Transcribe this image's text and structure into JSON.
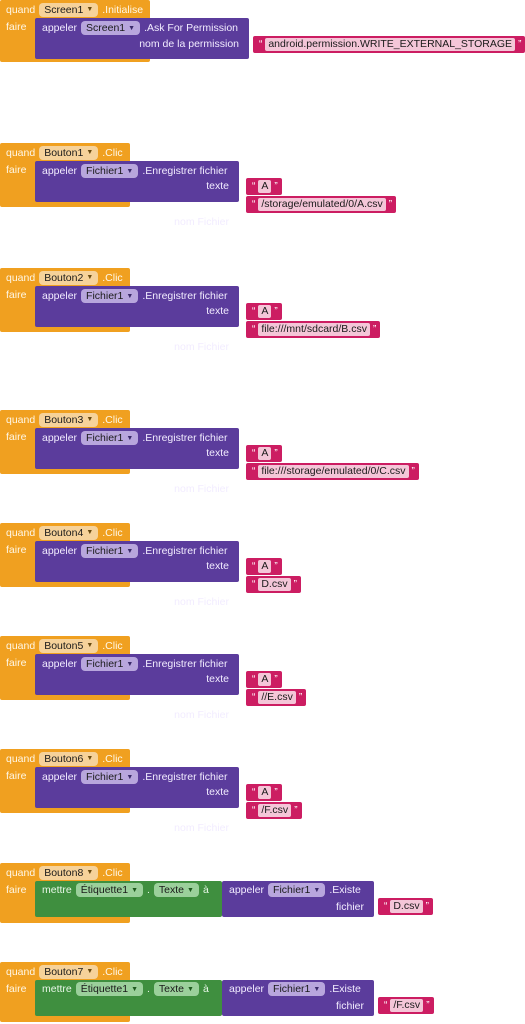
{
  "event_label": "quand",
  "do_label": "faire",
  "call_label": "appeler",
  "set_label": "mettre",
  "to_label": "à",
  "blocks": [
    {
      "component": "Screen1",
      "event": ".Initialise",
      "call_component": "Screen1",
      "method": ".Ask For Permission",
      "arg_label": "nom de la permission",
      "arg_value": "android.permission.WRITE_EXTERNAL_STORAGE"
    },
    {
      "component": "Bouton1",
      "event": ".Clic",
      "call_component": "Fichier1",
      "method": ".Enregistrer fichier",
      "arg1_label": "texte",
      "arg1_value": "A",
      "arg2_label": "nom Fichier",
      "arg2_value": "/storage/emulated/0/A.csv"
    },
    {
      "component": "Bouton2",
      "event": ".Clic",
      "call_component": "Fichier1",
      "method": ".Enregistrer fichier",
      "arg1_label": "texte",
      "arg1_value": "A",
      "arg2_label": "nom Fichier",
      "arg2_value": "file:///mnt/sdcard/B.csv"
    },
    {
      "component": "Bouton3",
      "event": ".Clic",
      "call_component": "Fichier1",
      "method": ".Enregistrer fichier",
      "arg1_label": "texte",
      "arg1_value": "A",
      "arg2_label": "nom Fichier",
      "arg2_value": "file:///storage/emulated/0/C.csv"
    },
    {
      "component": "Bouton4",
      "event": ".Clic",
      "call_component": "Fichier1",
      "method": ".Enregistrer fichier",
      "arg1_label": "texte",
      "arg1_value": "A",
      "arg2_label": "nom Fichier",
      "arg2_value": "D.csv"
    },
    {
      "component": "Bouton5",
      "event": ".Clic",
      "call_component": "Fichier1",
      "method": ".Enregistrer fichier",
      "arg1_label": "texte",
      "arg1_value": "A",
      "arg2_label": "nom Fichier",
      "arg2_value": "//E.csv"
    },
    {
      "component": "Bouton6",
      "event": ".Clic",
      "call_component": "Fichier1",
      "method": ".Enregistrer fichier",
      "arg1_label": "texte",
      "arg1_value": "A",
      "arg2_label": "nom Fichier",
      "arg2_value": "/F.csv"
    },
    {
      "component": "Bouton8",
      "event": ".Clic",
      "target": "Étiquette1",
      "property": "Texte",
      "call_component": "Fichier1",
      "method": ".Existe",
      "arg_label": "fichier",
      "arg_value": "D.csv"
    },
    {
      "component": "Bouton7",
      "event": ".Clic",
      "target": "Étiquette1",
      "property": "Texte",
      "call_component": "Fichier1",
      "method": ".Existe",
      "arg_label": "fichier",
      "arg_value": "/F.csv"
    }
  ],
  "quote": "“",
  "quote_close": "”",
  "colors": {
    "event": "#f0a020",
    "call": "#5b3c9c",
    "text": "#cc1d62",
    "setter": "#3f8f3f"
  }
}
